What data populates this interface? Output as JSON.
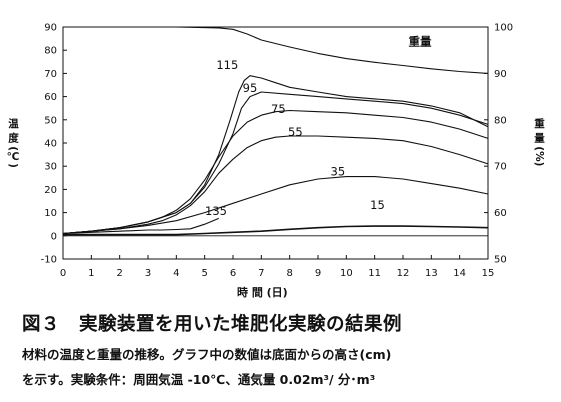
{
  "figure": {
    "title": "図３　実験装置を用いた堆肥化実験の結果例",
    "caption_line1": "材料の温度と重量の推移。グラフ中の数値は底面からの高さ(cm)",
    "caption_line2": "を示す。実験条件：周囲気温 -10℃、通気量 0.02m³/ 分･m³"
  },
  "chart_data": {
    "type": "line",
    "xlabel": "時 間 (日)",
    "ylabel_left": "温 度 (℃)",
    "ylabel_right": "重 量 (%)",
    "xlim": [
      0,
      15
    ],
    "ylim_left": [
      -10,
      90
    ],
    "ylim_right": [
      50,
      100
    ],
    "x_ticks": [
      "0",
      "1",
      "2",
      "3",
      "4",
      "5",
      "6",
      "7",
      "8",
      "9",
      "10",
      "11",
      "12",
      "13",
      "14",
      "15"
    ],
    "y_ticks_left": [
      "-10",
      "0",
      "10",
      "20",
      "30",
      "40",
      "50",
      "60",
      "70",
      "80",
      "90"
    ],
    "y_ticks_right": [
      "50",
      "60",
      "70",
      "80",
      "90",
      "100"
    ],
    "grid": false,
    "series": [
      {
        "name": "重量",
        "axis": "right",
        "label_pos": [
          12.6,
          96
        ],
        "x": [
          0,
          4,
          5.5,
          6,
          6.5,
          7,
          8,
          9,
          10,
          11,
          12,
          13,
          14,
          15
        ],
        "y": [
          100,
          100,
          99.8,
          99.5,
          98.5,
          97.2,
          95.7,
          94.3,
          93.2,
          92.4,
          91.7,
          91.0,
          90.4,
          90.0
        ]
      },
      {
        "name": "115",
        "axis": "left",
        "label_pos": [
          5.8,
          72
        ],
        "x": [
          0,
          1,
          2,
          3,
          3.5,
          4,
          4.5,
          5,
          5.5,
          5.9,
          6.2,
          6.4,
          6.6,
          7,
          7.5,
          8,
          9,
          10,
          11,
          12,
          13,
          14,
          15
        ],
        "y": [
          1,
          2,
          3.5,
          6,
          8,
          10,
          14,
          22,
          35,
          50,
          62,
          67,
          69,
          68,
          66,
          64,
          62,
          60,
          59,
          58,
          56,
          53,
          47
        ]
      },
      {
        "name": "95",
        "axis": "left",
        "label_pos": [
          6.6,
          62
        ],
        "x": [
          0,
          1,
          2,
          3,
          3.5,
          4,
          4.5,
          5,
          5.5,
          6,
          6.3,
          6.6,
          7,
          8,
          9,
          10,
          11,
          12,
          13,
          14,
          15
        ],
        "y": [
          1,
          2,
          3.5,
          6,
          8,
          10,
          14,
          21,
          31,
          44,
          55,
          60,
          62,
          61,
          60,
          59,
          58,
          57,
          55,
          52,
          48
        ]
      },
      {
        "name": "75",
        "axis": "left",
        "label_pos": [
          7.6,
          53
        ],
        "x": [
          0,
          1,
          2,
          3,
          3.5,
          4,
          4.5,
          5,
          5.5,
          6,
          6.5,
          7,
          7.5,
          8,
          9,
          10,
          11,
          12,
          13,
          14,
          15
        ],
        "y": [
          1,
          2,
          3.5,
          6,
          8,
          11,
          16,
          24,
          34,
          43,
          49,
          52,
          53.5,
          54,
          53.5,
          53,
          52,
          51,
          49,
          46,
          42
        ]
      },
      {
        "name": "55",
        "axis": "left",
        "label_pos": [
          8.2,
          43
        ],
        "x": [
          0,
          1,
          2,
          3,
          3.5,
          4,
          4.5,
          5,
          5.5,
          6,
          6.5,
          7,
          7.5,
          8,
          9,
          10,
          11,
          12,
          13,
          14,
          15
        ],
        "y": [
          1,
          2,
          3,
          5,
          6.5,
          9,
          13,
          19,
          27,
          33,
          38,
          41,
          42.5,
          43,
          43,
          42.5,
          42,
          41,
          38.5,
          35,
          31
        ]
      },
      {
        "name": "35",
        "axis": "left",
        "label_pos": [
          9.7,
          26
        ],
        "x": [
          0,
          1,
          2,
          3,
          4,
          5,
          6,
          7,
          8,
          9,
          10,
          11,
          12,
          13,
          14,
          15
        ],
        "y": [
          1,
          2,
          3,
          4.5,
          6.5,
          10,
          14,
          18,
          22,
          24.5,
          25.5,
          25.5,
          24.5,
          22.5,
          20.5,
          18
        ]
      },
      {
        "name": "135",
        "axis": "left",
        "label_pos": [
          5.4,
          9
        ],
        "x": [
          0,
          1,
          2,
          3,
          3.5,
          4,
          4.5,
          5,
          5.5
        ],
        "y": [
          1,
          1.5,
          2,
          2.5,
          2.5,
          2.7,
          3,
          5,
          7.5
        ]
      },
      {
        "name": "15",
        "axis": "left",
        "label_pos": [
          11.1,
          11.5
        ],
        "x": [
          0,
          1,
          2,
          3,
          4,
          5,
          6,
          7,
          8,
          9,
          10,
          11,
          12,
          13,
          14,
          15
        ],
        "y": [
          0.5,
          0.5,
          0.5,
          0.5,
          0.5,
          1,
          1.5,
          2,
          2.8,
          3.5,
          4,
          4.2,
          4.2,
          4,
          3.8,
          3.5
        ]
      }
    ]
  }
}
